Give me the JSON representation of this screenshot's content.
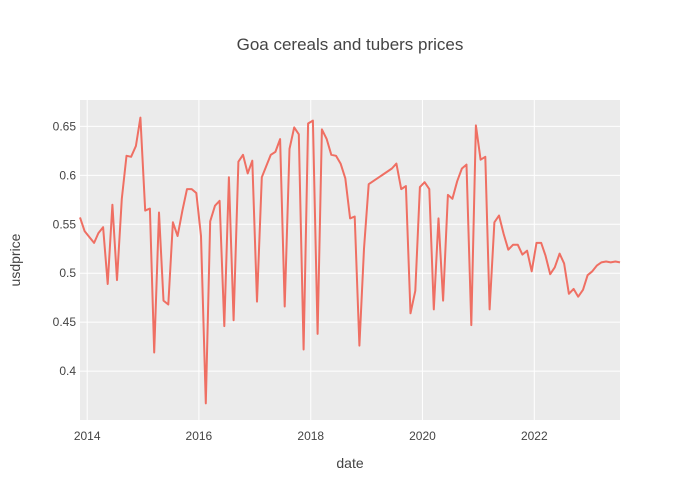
{
  "chart_data": {
    "type": "line",
    "title": "Goa cereals and tubers prices",
    "xlabel": "date",
    "ylabel": "usdprice",
    "xlim": [
      "2013-11-15",
      "2023-07-15"
    ],
    "ylim": [
      0.35,
      0.677
    ],
    "x_ticks": [
      "2014",
      "2016",
      "2018",
      "2020",
      "2022"
    ],
    "y_ticks": [
      "0.4",
      "0.45",
      "0.5",
      "0.55",
      "0.6",
      "0.65"
    ],
    "grid": true,
    "line_color": "#ef6f63",
    "plot_bg": "#ebebeb",
    "series": [
      {
        "x": [
          "2013-11-15",
          "2013-12-15",
          "2014-01-15",
          "2014-02-15",
          "2014-03-15",
          "2014-04-15",
          "2014-05-15",
          "2014-06-15",
          "2014-07-15",
          "2014-08-15",
          "2014-09-15",
          "2014-10-15",
          "2014-11-15",
          "2014-12-15",
          "2015-01-15",
          "2015-02-15",
          "2015-03-15",
          "2015-04-15",
          "2015-05-15",
          "2015-06-15",
          "2015-07-15",
          "2015-08-15",
          "2015-09-15",
          "2015-10-15",
          "2015-11-15",
          "2015-12-15",
          "2016-01-15",
          "2016-02-15",
          "2016-03-15",
          "2016-04-15",
          "2016-05-15",
          "2016-06-15",
          "2016-07-15",
          "2016-08-15",
          "2016-09-15",
          "2016-10-15",
          "2016-11-15",
          "2016-12-15",
          "2017-01-15",
          "2017-02-15",
          "2017-03-15",
          "2017-04-15",
          "2017-05-15",
          "2017-06-15",
          "2017-07-15",
          "2017-08-15",
          "2017-09-15",
          "2017-10-15",
          "2017-11-15",
          "2017-12-15",
          "2018-01-15",
          "2018-02-15",
          "2018-03-15",
          "2018-04-15",
          "2018-05-15",
          "2018-06-15",
          "2018-07-15",
          "2018-08-15",
          "2018-09-15",
          "2018-10-15",
          "2018-11-15",
          "2018-12-15",
          "2019-01-15",
          "2019-06-15",
          "2019-07-15",
          "2019-08-15",
          "2019-09-15",
          "2019-10-15",
          "2019-11-15",
          "2019-12-15",
          "2020-01-15",
          "2020-02-15",
          "2020-03-15",
          "2020-04-15",
          "2020-05-15",
          "2020-06-15",
          "2020-07-15",
          "2020-08-15",
          "2020-09-15",
          "2020-10-15",
          "2020-11-15",
          "2020-12-15",
          "2021-01-15",
          "2021-02-15",
          "2021-03-15",
          "2021-04-15",
          "2021-05-15",
          "2021-06-15",
          "2021-07-15",
          "2021-08-15",
          "2021-09-15",
          "2021-10-15",
          "2021-11-15",
          "2021-12-15",
          "2022-01-15",
          "2022-02-15",
          "2022-03-15",
          "2022-04-15",
          "2022-05-15",
          "2022-06-15",
          "2022-07-15",
          "2022-08-15",
          "2022-09-15",
          "2022-10-15",
          "2022-11-15",
          "2022-12-15",
          "2023-01-15",
          "2023-02-15",
          "2023-03-15",
          "2023-04-15",
          "2023-05-15",
          "2023-06-15",
          "2023-07-15"
        ],
        "y": [
          0.557,
          0.543,
          0.537,
          0.531,
          0.541,
          0.547,
          0.489,
          0.57,
          0.493,
          0.576,
          0.62,
          0.619,
          0.63,
          0.659,
          0.564,
          0.566,
          0.419,
          0.562,
          0.472,
          0.468,
          0.552,
          0.538,
          0.564,
          0.586,
          0.586,
          0.582,
          0.538,
          0.367,
          0.553,
          0.569,
          0.574,
          0.446,
          0.598,
          0.452,
          0.614,
          0.621,
          0.602,
          0.615,
          0.471,
          0.598,
          0.609,
          0.621,
          0.624,
          0.637,
          0.466,
          0.627,
          0.649,
          0.642,
          0.422,
          0.653,
          0.656,
          0.438,
          0.647,
          0.637,
          0.621,
          0.62,
          0.612,
          0.597,
          0.556,
          0.558,
          0.426,
          0.525,
          0.591,
          0.607,
          0.612,
          0.586,
          0.589,
          0.459,
          0.482,
          0.588,
          0.593,
          0.586,
          0.463,
          0.556,
          0.472,
          0.58,
          0.576,
          0.594,
          0.607,
          0.611,
          0.447,
          0.651,
          0.616,
          0.619,
          0.463,
          0.552,
          0.559,
          0.54,
          0.524,
          0.529,
          0.529,
          0.519,
          0.523,
          0.502,
          0.531,
          0.531,
          0.518,
          0.499,
          0.506,
          0.52,
          0.51,
          0.479,
          0.484,
          0.476,
          0.483,
          0.498,
          0.502,
          0.508,
          0.511,
          0.512,
          0.511,
          0.512,
          0.511
        ]
      }
    ]
  }
}
